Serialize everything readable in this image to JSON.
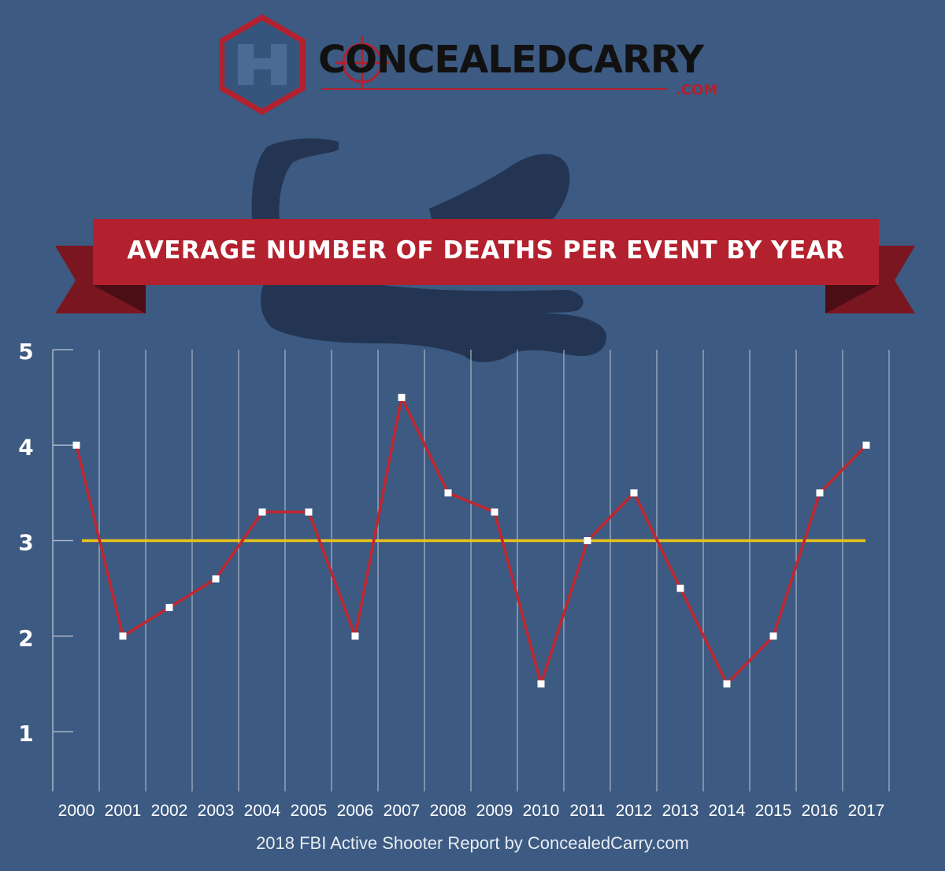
{
  "logo": {
    "name": "CONCEALEDCARRY",
    "domain": ".COM",
    "colors": {
      "brand_red": "#b3212e",
      "dark_text": "#111111",
      "hexagon_fill": "#35557d"
    }
  },
  "colors": {
    "background": "#3c5a82",
    "line": "#c0262f",
    "average_line": "#e8c31c",
    "banner": "#b3212e",
    "banner_dark": "#7a1620",
    "gridline": "#aab6c6",
    "marker": "#ffffff",
    "silhouette": "#233552"
  },
  "chart_data": {
    "type": "line",
    "title": "AVERAGE NUMBER OF DEATHS PER EVENT BY YEAR",
    "xlabel": "",
    "ylabel": "",
    "categories": [
      "2000",
      "2001",
      "2002",
      "2003",
      "2004",
      "2005",
      "2006",
      "2007",
      "2008",
      "2009",
      "2010",
      "2011",
      "2012",
      "2013",
      "2014",
      "2015",
      "2016",
      "2017"
    ],
    "series": [
      {
        "values": [
          4.0,
          2.0,
          2.3,
          2.6,
          3.3,
          3.3,
          2.0,
          4.5,
          3.5,
          3.3,
          1.5,
          3.0,
          3.5,
          2.5,
          1.5,
          2.0,
          3.5,
          4.0
        ]
      }
    ],
    "reference_line": {
      "value": 3.0
    },
    "ylim": [
      0,
      5
    ],
    "yticks": [
      1,
      2,
      3,
      4,
      5
    ],
    "grid": "vertical",
    "legend": "none",
    "source": "2018 FBI Active Shooter Report by ConcealedCarry.com"
  }
}
